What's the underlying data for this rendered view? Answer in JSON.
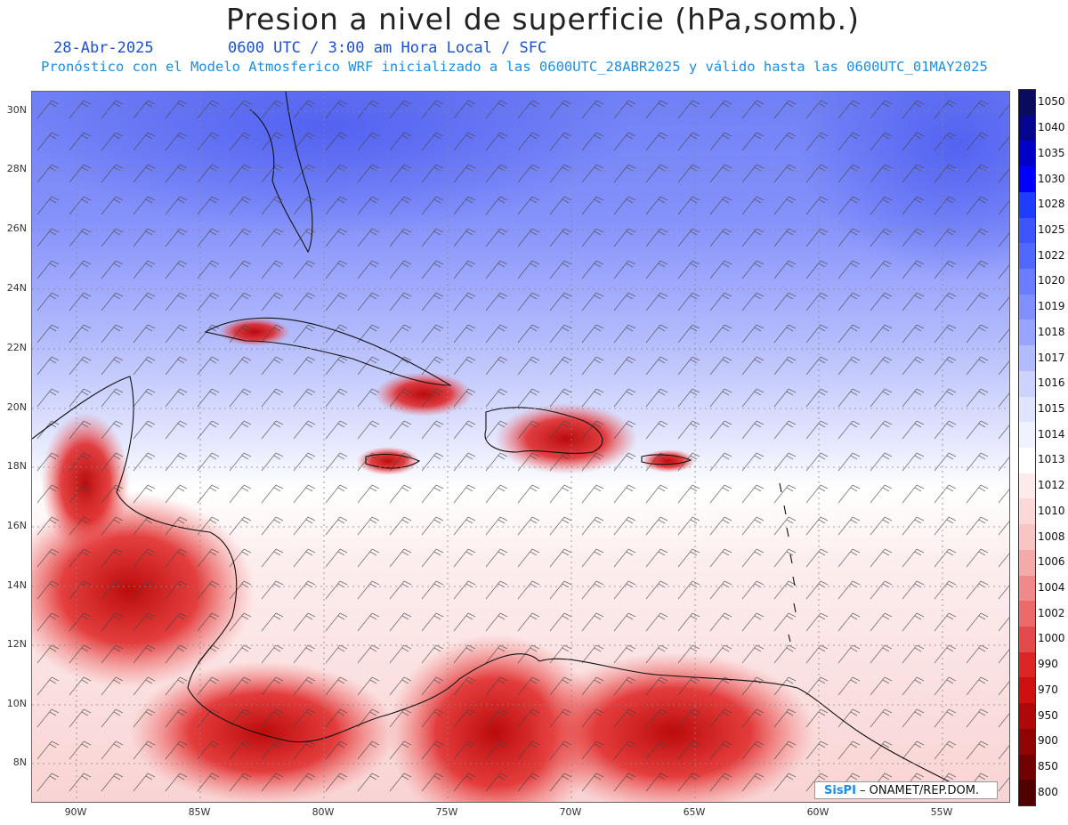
{
  "header": {
    "title": "Presion a nivel de superficie (hPa,somb.)",
    "date": "28-Abr-2025",
    "time_info": "0600 UTC / 3:00 am Hora Local / SFC",
    "model_info": "Pronóstico con el Modelo Atmosferico WRF inicializado a las 0600UTC_28ABR2025 y válido hasta las  0600UTC_01MAY2025"
  },
  "map": {
    "lat_labels": [
      "30N",
      "28N",
      "26N",
      "24N",
      "22N",
      "20N",
      "18N",
      "16N",
      "14N",
      "12N",
      "10N",
      "8N"
    ],
    "lon_labels": [
      "90W",
      "85W",
      "80W",
      "75W",
      "70W",
      "65W",
      "60W",
      "55W"
    ]
  },
  "colorbar": {
    "levels": [
      "1050",
      "1040",
      "1035",
      "1030",
      "1028",
      "1025",
      "1022",
      "1020",
      "1019",
      "1018",
      "1017",
      "1016",
      "1015",
      "1014",
      "1013",
      "1012",
      "1010",
      "1008",
      "1006",
      "1004",
      "1002",
      "1000",
      "990",
      "970",
      "950",
      "900",
      "850",
      "800"
    ],
    "colors": [
      "#0a0a5e",
      "#05058f",
      "#0000c8",
      "#0000ff",
      "#1f3cff",
      "#3c55ff",
      "#5068ff",
      "#6a7cff",
      "#8290ff",
      "#99a4ff",
      "#b3bbff",
      "#cdd3ff",
      "#e0e4ff",
      "#f0f2ff",
      "#ffffff",
      "#fdeaea",
      "#fbd9d9",
      "#f9c4c4",
      "#f5a9a9",
      "#f08a8a",
      "#eb6b6b",
      "#e44a4a",
      "#dc2525",
      "#d00f0f",
      "#b00808",
      "#900404",
      "#700202",
      "#500000"
    ]
  },
  "credit": {
    "logo": "SisPI",
    "text": " – ONAMET/REP.DOM."
  },
  "colors": {
    "title": "#222222",
    "date_blue": "#1a4fd6",
    "info_blue": "#1a8ee6"
  }
}
